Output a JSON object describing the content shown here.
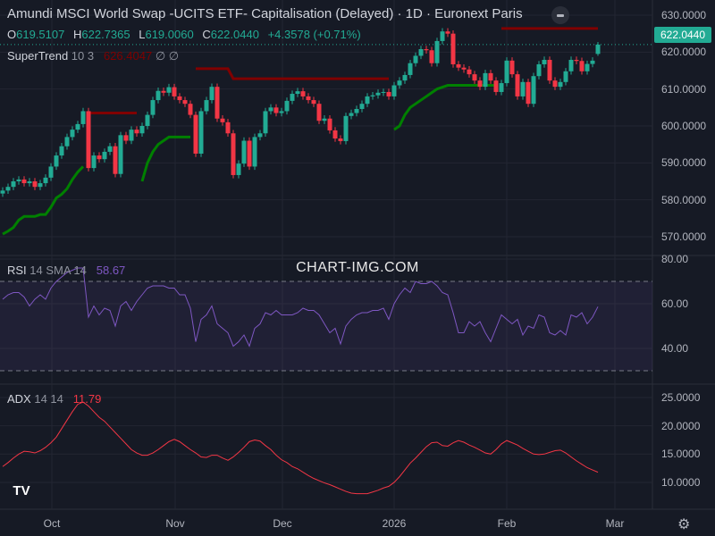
{
  "header": {
    "title": "Amundi MSCI World Swap -UCITS ETF- Capitalisation (Delayed) · 1D · Euronext Paris",
    "ohlc": {
      "o_label": "O",
      "o": "619.5107",
      "h_label": "H",
      "h": "622.7365",
      "l_label": "L",
      "l": "619.0060",
      "c_label": "C",
      "c": "622.0440",
      "change": "+4.3578 (+0.71%)"
    },
    "supertrend": {
      "name": "SuperTrend",
      "params": "10 3",
      "value": "626.4047",
      "extra1": "∅",
      "extra2": "∅"
    },
    "last_price_badge": "622.0440"
  },
  "rsi_legend": {
    "name": "RSI",
    "params": "14 SMA 14",
    "value": "58.67"
  },
  "adx_legend": {
    "name": "ADX",
    "params": "14 14",
    "value": "11.79"
  },
  "watermark": "CHART-IMG.COM",
  "logo": "TV",
  "icons": {
    "collapse": "minus-circle-icon",
    "settings": "gear-icon",
    "logo": "tradingview-logo"
  },
  "colors": {
    "up": "#22ab94",
    "down": "#f23645",
    "supertrend_up": "#008000",
    "supertrend_down": "#800000",
    "rsi": "#7e57c2",
    "adx": "#f23645",
    "background": "#161a25"
  },
  "chart_data": [
    {
      "type": "candlestick",
      "price_axis": {
        "ticks": [
          "630.0000",
          "620.0000",
          "610.0000",
          "600.0000",
          "590.0000",
          "580.0000",
          "570.0000"
        ],
        "range": [
          567,
          633
        ]
      },
      "time_axis": {
        "ticks": [
          "Oct",
          "Nov",
          "Dec",
          "2026",
          "Feb",
          "Mar"
        ]
      },
      "close": [
        582.5,
        583.5,
        585,
        585.5,
        584.5,
        585,
        583.5,
        584.5,
        586,
        589,
        592,
        594.5,
        597,
        599,
        600.5,
        604,
        588.6,
        592,
        591,
        593,
        594.5,
        587,
        597.5,
        596,
        599,
        598,
        600,
        603,
        607,
        609.5,
        609,
        610.5,
        608,
        607,
        606,
        603,
        592.5,
        604,
        607,
        610.6,
        602,
        601,
        598,
        586.7,
        589.8,
        596,
        589,
        597,
        598,
        604,
        605,
        603.5,
        604,
        606.8,
        608.7,
        609.4,
        608,
        607,
        606,
        601.4,
        602,
        598.8,
        596.6,
        595.9,
        602.7,
        603.5,
        604.6,
        606,
        608,
        608.3,
        609,
        609.2,
        608,
        611,
        612.3,
        613.8,
        617,
        619,
        620.8,
        620.5,
        617,
        623,
        625.6,
        625,
        616.7,
        615.8,
        615.3,
        614,
        612.3,
        610.6,
        614.3,
        612.3,
        609.2,
        611.6,
        617.7,
        614,
        608,
        611.9,
        606,
        613.5,
        616.7,
        617.9,
        612.3,
        610.6,
        611.9,
        614.8,
        617.9,
        617.6,
        614.8,
        616.8,
        617.69,
        622.044
      ],
      "last_candle": {
        "open": 619.5107,
        "high": 622.7365,
        "low": 619.006,
        "close": 622.044
      },
      "supertrend": [
        {
          "trend": "up",
          "start": 0,
          "values": [
            570.7,
            571.5,
            572.5,
            574.5,
            575.5,
            575.5,
            575.5,
            576,
            576,
            578,
            580.5,
            581.5,
            583,
            585.5,
            587.5,
            589
          ]
        },
        {
          "trend": "down",
          "start": 16,
          "values": [
            603.5,
            603.5,
            603.5,
            603.5,
            603.5,
            603.5,
            603.5,
            603.5,
            603.5,
            603.5
          ]
        },
        {
          "trend": "up",
          "start": 26,
          "values": [
            585,
            590,
            593,
            595,
            596,
            597,
            597,
            597,
            597,
            597
          ]
        },
        {
          "trend": "down",
          "start": 36,
          "values": [
            615.5,
            615.5,
            615.5,
            615.5,
            615.5,
            615.5,
            615.5,
            612.8,
            612.8,
            612.8,
            612.8,
            612.8,
            612.8,
            612.8,
            612.8,
            612.8,
            612.8,
            612.8,
            612.8,
            612.8,
            612.8,
            612.8,
            612.8,
            612.8,
            612.8,
            612.8,
            612.8,
            612.8,
            612.8,
            612.8,
            612.8,
            612.8,
            612.8,
            612.8,
            612.8,
            612.8,
            612.8
          ]
        },
        {
          "trend": "up",
          "start": 73,
          "values": [
            599,
            600,
            603,
            605,
            606,
            607,
            608,
            609,
            610,
            610.5,
            611,
            611,
            611,
            611,
            611,
            611,
            611,
            611,
            611,
            611
          ]
        },
        {
          "trend": "down",
          "start": 93,
          "values": [
            626.4,
            626.4,
            626.4,
            626.4,
            626.4,
            626.4,
            626.4,
            626.4,
            626.4,
            626.4,
            626.4,
            626.4,
            626.4,
            626.4,
            626.4,
            626.4,
            626.4,
            626.4,
            626.4
          ]
        }
      ]
    },
    {
      "type": "line",
      "name": "RSI",
      "axis": {
        "ticks": [
          "80.00",
          "60.00",
          "40.00"
        ],
        "bands": [
          70,
          30
        ]
      },
      "values": [
        62,
        64,
        65,
        65,
        63,
        59,
        62,
        64,
        62,
        67,
        70,
        72,
        74,
        75,
        76,
        76,
        54,
        59,
        55,
        58,
        57,
        50,
        59,
        61,
        57,
        61,
        64,
        67,
        68,
        68,
        68,
        67,
        67,
        64,
        64,
        58,
        43,
        53,
        55,
        59,
        51,
        49,
        47,
        41,
        43,
        46,
        41,
        49,
        51,
        56,
        55,
        57,
        55,
        55,
        55,
        56,
        58,
        57,
        57,
        55,
        51,
        47,
        49,
        42,
        50,
        53,
        55,
        56,
        56,
        57,
        57,
        58,
        53,
        60,
        64,
        67,
        65,
        70,
        69,
        69,
        70,
        68,
        65,
        64,
        56,
        47,
        47,
        52,
        50,
        52,
        47,
        43,
        49,
        55,
        53,
        51,
        53,
        46,
        50,
        49,
        55,
        54,
        47,
        46,
        48,
        46,
        55,
        54,
        56,
        51,
        54,
        58.67
      ]
    },
    {
      "type": "line",
      "name": "ADX",
      "axis": {
        "ticks": [
          "25.0000",
          "20.0000",
          "15.0000",
          "10.0000"
        ]
      },
      "values": [
        12.8,
        13.5,
        14.3,
        15,
        15.5,
        15.4,
        15.2,
        15.6,
        16.2,
        17,
        18,
        19.5,
        21,
        22.5,
        23.8,
        24.2,
        23.5,
        22.5,
        21.5,
        20.8,
        19.8,
        18.8,
        17.8,
        16.8,
        15.8,
        15.2,
        14.8,
        14.8,
        15.2,
        15.8,
        16.5,
        17.2,
        17.6,
        17.2,
        16.5,
        15.8,
        15.2,
        14.5,
        14.4,
        14.8,
        14.8,
        14.3,
        13.9,
        14.5,
        15.3,
        16.2,
        17.2,
        17.5,
        17.3,
        16.5,
        15.8,
        14.8,
        14,
        13.5,
        12.8,
        12.4,
        11.8,
        11.2,
        10.7,
        10.3,
        9.9,
        9.6,
        9.2,
        8.8,
        8.4,
        8.1,
        8,
        8,
        8,
        8.3,
        8.6,
        9,
        9.3,
        10,
        11,
        12.2,
        13.4,
        14.3,
        15.3,
        16.3,
        17,
        17.1,
        16.5,
        16.4,
        17,
        17.4,
        17.1,
        16.6,
        16.2,
        15.7,
        15.2,
        15,
        15.8,
        16.8,
        17.4,
        17,
        16.6,
        16,
        15.5,
        15,
        14.9,
        15,
        15.3,
        15.6,
        15.7,
        15.2,
        14.5,
        13.8,
        13.2,
        12.6,
        12.2,
        11.79
      ]
    }
  ]
}
